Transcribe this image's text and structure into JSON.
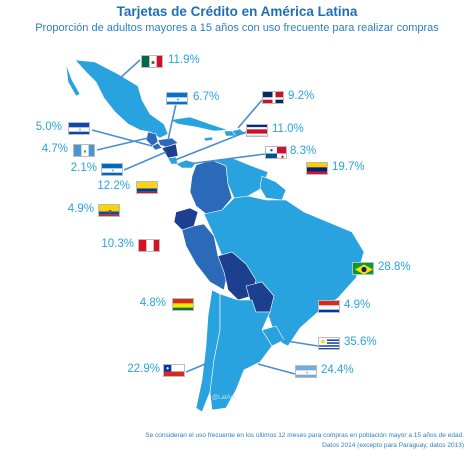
{
  "title": "Tarjetas de Crédito en América Latina",
  "subtitle": "Proporción de adultos mayores a 15 años con uso frecuente para realizar compras",
  "brand": "@LatAm",
  "footnote_line1": "Se consideran el uso frecuente en los últimos 12 meses para compras en población mayor a 15 años de edad.",
  "footnote_line2": "Datos 2014 (excepto para Paraguay, datos 2013)",
  "colors": {
    "light": "#29a3df",
    "mid": "#2a6ab8",
    "dark": "#1d3f8f",
    "callout": "#4a8fd0"
  },
  "countries": [
    {
      "name": "Mexico",
      "flag": "mexico",
      "value": "11.9%",
      "shade": "light"
    },
    {
      "name": "Honduras",
      "flag": "honduras",
      "value": "6.7%",
      "shade": "mid"
    },
    {
      "name": "Dominican Republic",
      "flag": "dominican",
      "value": "9.2%",
      "shade": "light"
    },
    {
      "name": "El Salvador",
      "flag": "salvador",
      "value": "5.0%",
      "shade": "mid"
    },
    {
      "name": "Costa Rica",
      "flag": "costarica",
      "value": "11.0%",
      "shade": "light"
    },
    {
      "name": "Guatemala",
      "flag": "guatemala",
      "value": "4.7%",
      "shade": "mid"
    },
    {
      "name": "Panama",
      "flag": "panama",
      "value": "8.3%",
      "shade": "light"
    },
    {
      "name": "Nicaragua",
      "flag": "nicaragua",
      "value": "2.1%",
      "shade": "dark"
    },
    {
      "name": "Venezuela",
      "flag": "venezuela",
      "value": "19.7%",
      "shade": "light"
    },
    {
      "name": "Colombia",
      "flag": "colombia",
      "value": "12.2%",
      "shade": "mid"
    },
    {
      "name": "Ecuador",
      "flag": "ecuador",
      "value": "4.9%",
      "shade": "dark"
    },
    {
      "name": "Peru",
      "flag": "peru",
      "value": "10.3%",
      "shade": "mid"
    },
    {
      "name": "Brazil",
      "flag": "brazil",
      "value": "28.8%",
      "shade": "light"
    },
    {
      "name": "Bolivia",
      "flag": "bolivia",
      "value": "4.8%",
      "shade": "dark"
    },
    {
      "name": "Paraguay",
      "flag": "paraguay",
      "value": "4.9%",
      "shade": "dark"
    },
    {
      "name": "Uruguay",
      "flag": "uruguay",
      "value": "35.6%",
      "shade": "light"
    },
    {
      "name": "Chile",
      "flag": "chile",
      "value": "22.9%",
      "shade": "light"
    },
    {
      "name": "Argentina",
      "flag": "argentina",
      "value": "24.4%",
      "shade": "light"
    }
  ]
}
